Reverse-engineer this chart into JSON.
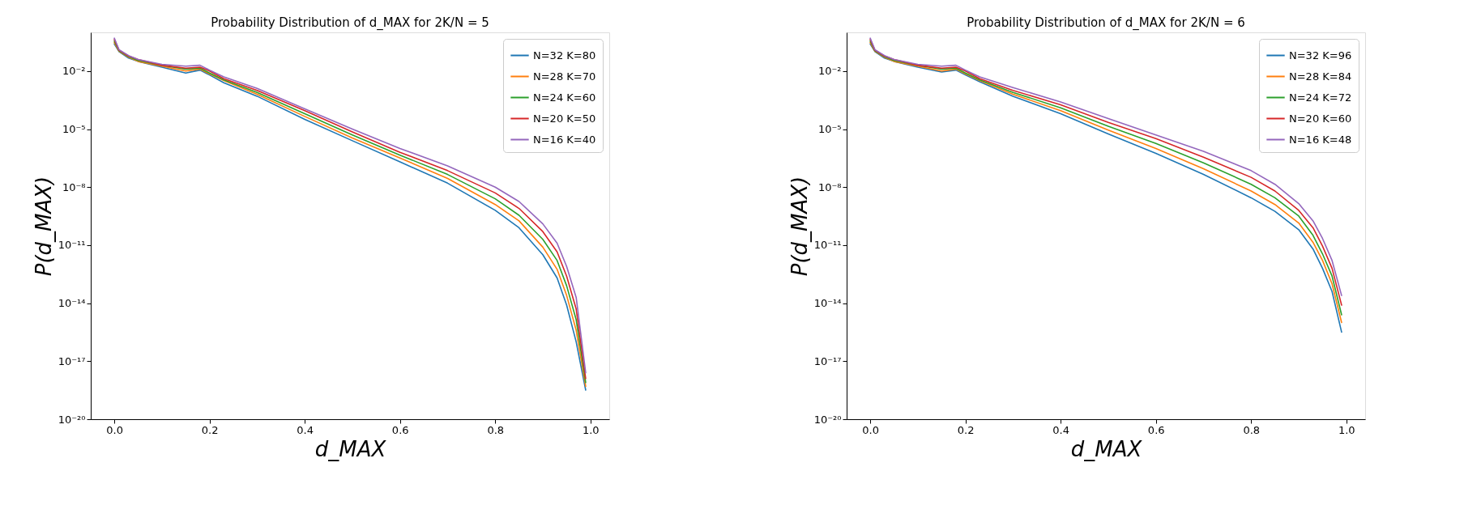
{
  "chart_data": [
    {
      "type": "line",
      "title": "Probability Distribution of d_MAX for 2K/N = 5",
      "xlabel": "d_MAX",
      "ylabel": "P(d_MAX)",
      "log": "y",
      "grid": false,
      "legend": "top right",
      "marker": "none",
      "line_style": "solid",
      "xlim": [
        -0.0495,
        1.0395
      ],
      "ylim": [
        1e-20,
        1
      ],
      "xticks": [
        {
          "value": 0,
          "label": "0.0"
        },
        {
          "value": 0.2,
          "label": "0.2"
        },
        {
          "value": 0.4,
          "label": "0.4"
        },
        {
          "value": 0.6,
          "label": "0.6"
        },
        {
          "value": 0.8,
          "label": "0.8"
        },
        {
          "value": 1,
          "label": "1.0"
        }
      ],
      "yticks": [
        {
          "value": 1e-20,
          "label": "10⁻²⁰"
        },
        {
          "value": 1e-17,
          "label": "10⁻¹⁷"
        },
        {
          "value": 1e-14,
          "label": "10⁻¹⁴"
        },
        {
          "value": 1e-11,
          "label": "10⁻¹¹"
        },
        {
          "value": 1e-08,
          "label": "10⁻⁸"
        },
        {
          "value": 1e-05,
          "label": "10⁻⁵"
        },
        {
          "value": 0.01,
          "label": "10⁻²"
        }
      ],
      "x": [
        0,
        0.01,
        0.03,
        0.05,
        0.1,
        0.15,
        0.18,
        0.2,
        0.23,
        0.3,
        0.4,
        0.5,
        0.6,
        0.7,
        0.8,
        0.85,
        0.9,
        0.93,
        0.95,
        0.97,
        0.99
      ],
      "series": [
        {
          "name": "N=32 K=80",
          "color": "#1f77b4",
          "values": [
            0.25,
            0.1,
            0.047,
            0.0316,
            0.0158,
            0.0079,
            0.0112,
            0.0063,
            0.0025,
            0.0005,
            3.2e-05,
            2.5e-06,
            2e-07,
            1.6e-08,
            6.3e-10,
            7.9e-11,
            3.2e-12,
            2e-13,
            7.9e-15,
            1e-16,
            3.2e-19
          ]
        },
        {
          "name": "N=28 K=70",
          "color": "#ff7f0e",
          "values": [
            0.3,
            0.106,
            0.052,
            0.0316,
            0.0178,
            0.01,
            0.0126,
            0.0071,
            0.0032,
            0.00063,
            4.5e-05,
            3.5e-06,
            3.2e-07,
            2.8e-08,
            1.26e-09,
            1.8e-10,
            7.9e-12,
            5.6e-13,
            2.5e-14,
            4e-16,
            5e-19
          ]
        },
        {
          "name": "N=24 K=60",
          "color": "#2ca02c",
          "values": [
            0.36,
            0.112,
            0.056,
            0.0355,
            0.02,
            0.0126,
            0.0141,
            0.0079,
            0.0035,
            0.00079,
            6.3e-05,
            5e-06,
            4.5e-07,
            4.5e-08,
            2.5e-09,
            3.5e-10,
            2e-11,
            1.6e-12,
            7.9e-14,
            1.4e-15,
            7.9e-19
          ]
        },
        {
          "name": "N=20 K=50",
          "color": "#d62728",
          "values": [
            0.43,
            0.119,
            0.06,
            0.0398,
            0.02,
            0.0141,
            0.0158,
            0.01,
            0.004,
            0.001,
            8.9e-05,
            7.1e-06,
            6.3e-07,
            7.1e-08,
            5e-09,
            7.9e-10,
            5e-11,
            4.5e-12,
            2.5e-13,
            5e-15,
            1.26e-18
          ]
        },
        {
          "name": "N=16 K=40",
          "color": "#9467bd",
          "values": [
            0.501,
            0.126,
            0.0631,
            0.0398,
            0.0224,
            0.0178,
            0.02,
            0.0112,
            0.005,
            0.00126,
            0.000112,
            1e-05,
            1e-06,
            1.26e-07,
            1e-08,
            1.8e-09,
            1.26e-10,
            1.26e-11,
            7.9e-13,
            2e-14,
            2.5e-18
          ]
        }
      ]
    },
    {
      "type": "line",
      "title": "Probability Distribution of d_MAX for 2K/N = 6",
      "xlabel": "d_MAX",
      "ylabel": "P(d_MAX)",
      "log": "y",
      "grid": false,
      "legend": "top right",
      "marker": "none",
      "line_style": "solid",
      "xlim": [
        -0.0495,
        1.0395
      ],
      "ylim": [
        1e-20,
        1
      ],
      "xticks": [
        {
          "value": 0,
          "label": "0.0"
        },
        {
          "value": 0.2,
          "label": "0.2"
        },
        {
          "value": 0.4,
          "label": "0.4"
        },
        {
          "value": 0.6,
          "label": "0.6"
        },
        {
          "value": 0.8,
          "label": "0.8"
        },
        {
          "value": 1,
          "label": "1.0"
        }
      ],
      "yticks": [
        {
          "value": 1e-20,
          "label": "10⁻²⁰"
        },
        {
          "value": 1e-17,
          "label": "10⁻¹⁷"
        },
        {
          "value": 1e-14,
          "label": "10⁻¹⁴"
        },
        {
          "value": 1e-11,
          "label": "10⁻¹¹"
        },
        {
          "value": 1e-08,
          "label": "10⁻⁸"
        },
        {
          "value": 1e-05,
          "label": "10⁻⁵"
        },
        {
          "value": 0.01,
          "label": "10⁻²"
        }
      ],
      "x": [
        0,
        0.01,
        0.03,
        0.05,
        0.1,
        0.15,
        0.18,
        0.2,
        0.23,
        0.3,
        0.4,
        0.5,
        0.6,
        0.7,
        0.8,
        0.85,
        0.9,
        0.93,
        0.95,
        0.97,
        0.99
      ],
      "series": [
        {
          "name": "N=32 K=96",
          "color": "#1f77b4",
          "values": [
            0.25,
            0.1,
            0.047,
            0.0316,
            0.0158,
            0.0089,
            0.0112,
            0.0063,
            0.0028,
            0.0005,
            6.3e-05,
            5.6e-06,
            5.6e-07,
            4.5e-08,
            2.8e-09,
            5.6e-10,
            6.3e-11,
            6.3e-12,
            6.3e-13,
            4e-14,
            3.2e-16
          ]
        },
        {
          "name": "N=28 K=84",
          "color": "#ff7f0e",
          "values": [
            0.3,
            0.106,
            0.052,
            0.0316,
            0.0178,
            0.01,
            0.0126,
            0.0071,
            0.0032,
            0.00063,
            8.9e-05,
            8.9e-06,
            1e-06,
            8.9e-08,
            6.3e-09,
            1.26e-09,
            1.4e-10,
            1.4e-11,
            1.6e-12,
            1e-13,
            1e-15
          ]
        },
        {
          "name": "N=24 K=72",
          "color": "#2ca02c",
          "values": [
            0.36,
            0.112,
            0.056,
            0.0355,
            0.02,
            0.0126,
            0.0141,
            0.0079,
            0.0035,
            0.00079,
            0.000126,
            1.4e-05,
            1.8e-06,
            1.8e-07,
            1.4e-08,
            2.8e-09,
            3.2e-10,
            3.2e-11,
            3.5e-12,
            2.5e-13,
            2.5e-15
          ]
        },
        {
          "name": "N=20 K=60",
          "color": "#d62728",
          "values": [
            0.43,
            0.119,
            0.06,
            0.0398,
            0.02,
            0.0141,
            0.0158,
            0.01,
            0.004,
            0.001,
            0.00018,
            2.2e-05,
            3.2e-06,
            3.5e-07,
            3.2e-08,
            6.3e-09,
            6.3e-10,
            7.9e-11,
            8.9e-12,
            6.3e-13,
            7.9e-15
          ]
        },
        {
          "name": "N=16 K=48",
          "color": "#9467bd",
          "values": [
            0.501,
            0.126,
            0.0631,
            0.0398,
            0.0224,
            0.0178,
            0.02,
            0.0112,
            0.005,
            0.0014,
            0.00025,
            3.5e-05,
            5e-06,
            7.1e-07,
            7.1e-08,
            1.4e-08,
            1.4e-09,
            1.8e-10,
            2.2e-11,
            1.6e-12,
            2.5e-14
          ]
        }
      ]
    }
  ]
}
